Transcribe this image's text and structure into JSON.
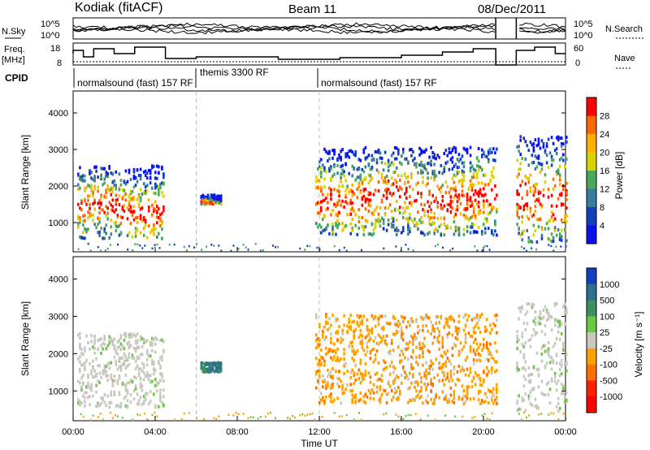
{
  "header": {
    "station": "Kodiak (fitACF)",
    "beam": "Beam 11",
    "date": "08/Dec/2011"
  },
  "left_labels": {
    "nsky": "N.Sky",
    "freq_line1": "Freq.",
    "freq_line2": "[MHz]",
    "cpid": "CPID"
  },
  "right_labels": {
    "nsearch": "N.Search",
    "nave": "Nave"
  },
  "noise_axis": {
    "ticks": [
      "10^5",
      "10^0"
    ]
  },
  "freq_axis": {
    "ticks": [
      "18",
      "8"
    ]
  },
  "nave_axis": {
    "ticks": [
      "60",
      "0"
    ]
  },
  "cpid_labels": [
    "normalsound (fast) 157 RF",
    "themis 3300 RF",
    "normalsound (fast) 157 RF"
  ],
  "chart_data": [
    {
      "type": "heatmap",
      "name": "Power",
      "ylabel": "Slant Range [km]",
      "yticks": [
        1000,
        2000,
        3000,
        4000
      ],
      "ylim": [
        200,
        4600
      ],
      "xticks": [
        "00:00",
        "04:00",
        "08:00",
        "12:00",
        "16:00",
        "20:00",
        "00:00"
      ],
      "xlim_hours": [
        0,
        24
      ],
      "colorbar": {
        "label": "Power [dB]",
        "ticks": [
          "28",
          "24",
          "20",
          "16",
          "12",
          "8",
          "4"
        ],
        "colors": [
          "#ff0000",
          "#ff6a00",
          "#ffb000",
          "#d7d200",
          "#4aa85a",
          "#3a7a9a",
          "#1040c0",
          "#0a10f0"
        ]
      },
      "echo_regions": [
        {
          "t": [
            0.2,
            4.4
          ],
          "r": [
            600,
            2600
          ],
          "level": "mixed"
        },
        {
          "t": [
            6.2,
            7.2
          ],
          "r": [
            1550,
            1800
          ],
          "level": "medium"
        },
        {
          "t": [
            11.8,
            20.6
          ],
          "r": [
            700,
            3100
          ],
          "level": "mixed"
        },
        {
          "t": [
            21.6,
            24.0
          ],
          "r": [
            500,
            3400
          ],
          "level": "mixed"
        }
      ]
    },
    {
      "type": "heatmap",
      "name": "Velocity",
      "ylabel": "Slant Range [km]",
      "yticks": [
        1000,
        2000,
        3000,
        4000
      ],
      "ylim": [
        200,
        4600
      ],
      "xticks": [
        "00:00",
        "04:00",
        "08:00",
        "12:00",
        "16:00",
        "20:00",
        "00:00"
      ],
      "xlim_hours": [
        0,
        24
      ],
      "xlabel": "Time UT",
      "colorbar": {
        "label": "Velocity [m s⁻¹]",
        "ticks": [
          "1000",
          "500",
          "100",
          "25",
          "-25",
          "-100",
          "-500",
          "-1000"
        ],
        "colors": [
          "#1040c0",
          "#2e6e8e",
          "#3a9060",
          "#6ac840",
          "#c8c8c0",
          "#ffa000",
          "#ff7000",
          "#ff2000",
          "#ff0000"
        ]
      },
      "echo_regions": [
        {
          "t": [
            0.2,
            4.4
          ],
          "r": [
            600,
            2600
          ],
          "level": "near-zero"
        },
        {
          "t": [
            6.2,
            7.2
          ],
          "r": [
            1550,
            1800
          ],
          "level": "positive"
        },
        {
          "t": [
            11.8,
            20.6
          ],
          "r": [
            700,
            3100
          ],
          "level": "negative"
        },
        {
          "t": [
            21.6,
            24.0
          ],
          "r": [
            500,
            3400
          ],
          "level": "near-zero"
        }
      ]
    }
  ]
}
